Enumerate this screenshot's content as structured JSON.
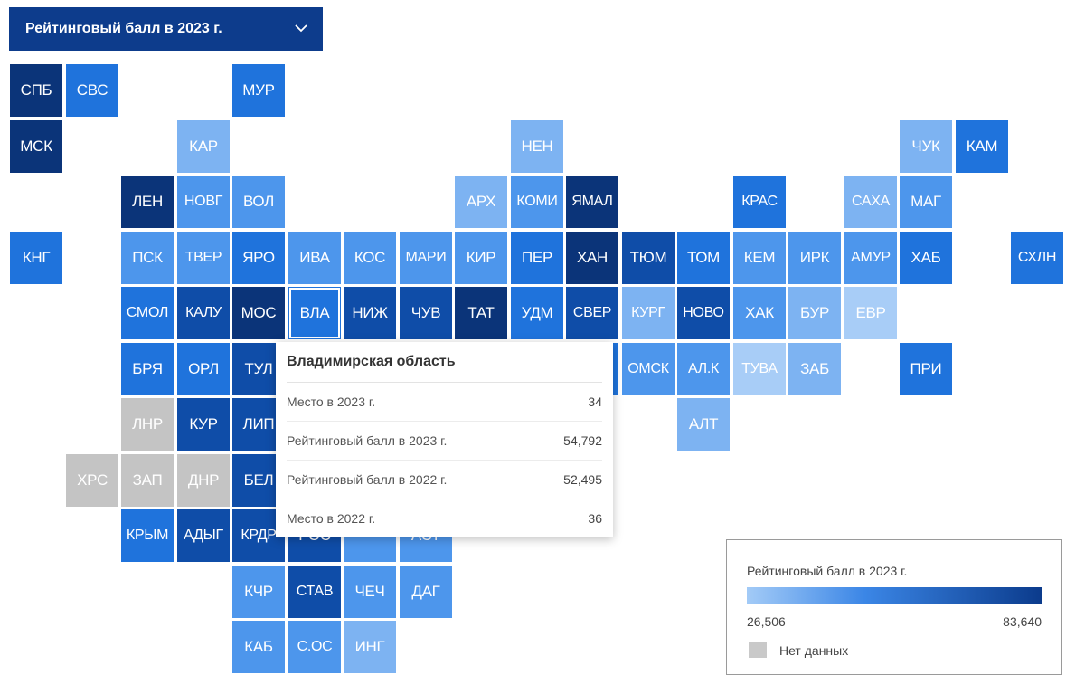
{
  "selector": {
    "label": "Рейтинговый балл в 2023 г.",
    "icon": "chevron-down-icon"
  },
  "colors": {
    "very_dark": "#0b3479",
    "dark": "#0f4da8",
    "medium": "#1f73dc",
    "light": "#4d96ec",
    "lighter": "#7db3f2",
    "lightest": "#a8cdf7",
    "no_data": "#c4c4c4"
  },
  "regions": [
    {
      "label": "СПБ",
      "col": 0,
      "row": 0,
      "shade": "very_dark"
    },
    {
      "label": "СВС",
      "col": 1,
      "row": 0,
      "shade": "medium"
    },
    {
      "label": "МУР",
      "col": 4,
      "row": 0,
      "shade": "medium"
    },
    {
      "label": "МСК",
      "col": 0,
      "row": 1,
      "shade": "very_dark"
    },
    {
      "label": "КАР",
      "col": 3,
      "row": 1,
      "shade": "lighter"
    },
    {
      "label": "НЕН",
      "col": 9,
      "row": 1,
      "shade": "lighter"
    },
    {
      "label": "ЧУК",
      "col": 16,
      "row": 1,
      "shade": "lighter"
    },
    {
      "label": "КАМ",
      "col": 17,
      "row": 1,
      "shade": "medium"
    },
    {
      "label": "ЛЕН",
      "col": 2,
      "row": 2,
      "shade": "very_dark"
    },
    {
      "label": "НОВГ",
      "col": 3,
      "row": 2,
      "shade": "light"
    },
    {
      "label": "ВОЛ",
      "col": 4,
      "row": 2,
      "shade": "light"
    },
    {
      "label": "АРХ",
      "col": 8,
      "row": 2,
      "shade": "lighter"
    },
    {
      "label": "КОМИ",
      "col": 9,
      "row": 2,
      "shade": "light"
    },
    {
      "label": "ЯМАЛ",
      "col": 10,
      "row": 2,
      "shade": "very_dark"
    },
    {
      "label": "КРАС",
      "col": 13,
      "row": 2,
      "shade": "medium"
    },
    {
      "label": "САХА",
      "col": 15,
      "row": 2,
      "shade": "lighter"
    },
    {
      "label": "МАГ",
      "col": 16,
      "row": 2,
      "shade": "light"
    },
    {
      "label": "КНГ",
      "col": 0,
      "row": 3,
      "shade": "medium"
    },
    {
      "label": "ПСК",
      "col": 2,
      "row": 3,
      "shade": "light"
    },
    {
      "label": "ТВЕР",
      "col": 3,
      "row": 3,
      "shade": "light"
    },
    {
      "label": "ЯРО",
      "col": 4,
      "row": 3,
      "shade": "medium"
    },
    {
      "label": "ИВА",
      "col": 5,
      "row": 3,
      "shade": "light"
    },
    {
      "label": "КОС",
      "col": 6,
      "row": 3,
      "shade": "light"
    },
    {
      "label": "МАРИ",
      "col": 7,
      "row": 3,
      "shade": "light"
    },
    {
      "label": "КИР",
      "col": 8,
      "row": 3,
      "shade": "light"
    },
    {
      "label": "ПЕР",
      "col": 9,
      "row": 3,
      "shade": "medium"
    },
    {
      "label": "ХАН",
      "col": 10,
      "row": 3,
      "shade": "very_dark"
    },
    {
      "label": "ТЮМ",
      "col": 11,
      "row": 3,
      "shade": "dark"
    },
    {
      "label": "ТОМ",
      "col": 12,
      "row": 3,
      "shade": "medium"
    },
    {
      "label": "КЕМ",
      "col": 13,
      "row": 3,
      "shade": "light"
    },
    {
      "label": "ИРК",
      "col": 14,
      "row": 3,
      "shade": "light"
    },
    {
      "label": "АМУР",
      "col": 15,
      "row": 3,
      "shade": "light"
    },
    {
      "label": "ХАБ",
      "col": 16,
      "row": 3,
      "shade": "medium"
    },
    {
      "label": "СХЛН",
      "col": 18,
      "row": 3,
      "shade": "medium"
    },
    {
      "label": "СМОЛ",
      "col": 2,
      "row": 4,
      "shade": "medium"
    },
    {
      "label": "КАЛУ",
      "col": 3,
      "row": 4,
      "shade": "dark"
    },
    {
      "label": "МОС",
      "col": 4,
      "row": 4,
      "shade": "very_dark"
    },
    {
      "label": "ВЛА",
      "col": 5,
      "row": 4,
      "shade": "medium",
      "active": true
    },
    {
      "label": "НИЖ",
      "col": 6,
      "row": 4,
      "shade": "dark"
    },
    {
      "label": "ЧУВ",
      "col": 7,
      "row": 4,
      "shade": "dark"
    },
    {
      "label": "ТАТ",
      "col": 8,
      "row": 4,
      "shade": "very_dark"
    },
    {
      "label": "УДМ",
      "col": 9,
      "row": 4,
      "shade": "medium"
    },
    {
      "label": "СВЕР",
      "col": 10,
      "row": 4,
      "shade": "dark"
    },
    {
      "label": "КУРГ",
      "col": 11,
      "row": 4,
      "shade": "lighter"
    },
    {
      "label": "НОВО",
      "col": 12,
      "row": 4,
      "shade": "dark"
    },
    {
      "label": "ХАК",
      "col": 13,
      "row": 4,
      "shade": "light"
    },
    {
      "label": "БУР",
      "col": 14,
      "row": 4,
      "shade": "lighter"
    },
    {
      "label": "ЕВР",
      "col": 15,
      "row": 4,
      "shade": "lightest"
    },
    {
      "label": "БРЯ",
      "col": 2,
      "row": 5,
      "shade": "medium"
    },
    {
      "label": "ОРЛ",
      "col": 3,
      "row": 5,
      "shade": "medium"
    },
    {
      "label": "ТУЛ",
      "col": 4,
      "row": 5,
      "shade": "dark"
    },
    {
      "label": "",
      "col": 10,
      "row": 5,
      "shade": "medium"
    },
    {
      "label": "ОМСК",
      "col": 11,
      "row": 5,
      "shade": "light"
    },
    {
      "label": "АЛ.К",
      "col": 12,
      "row": 5,
      "shade": "light"
    },
    {
      "label": "ТУВА",
      "col": 13,
      "row": 5,
      "shade": "lightest"
    },
    {
      "label": "ЗАБ",
      "col": 14,
      "row": 5,
      "shade": "lighter"
    },
    {
      "label": "ПРИ",
      "col": 16,
      "row": 5,
      "shade": "medium"
    },
    {
      "label": "ЛНР",
      "col": 2,
      "row": 6,
      "shade": "no_data"
    },
    {
      "label": "КУР",
      "col": 3,
      "row": 6,
      "shade": "dark"
    },
    {
      "label": "ЛИП",
      "col": 4,
      "row": 6,
      "shade": "dark"
    },
    {
      "label": "АЛТ",
      "col": 12,
      "row": 6,
      "shade": "lighter"
    },
    {
      "label": "ХРС",
      "col": 1,
      "row": 7,
      "shade": "no_data"
    },
    {
      "label": "ЗАП",
      "col": 2,
      "row": 7,
      "shade": "no_data"
    },
    {
      "label": "ДНР",
      "col": 3,
      "row": 7,
      "shade": "no_data"
    },
    {
      "label": "БЕЛ",
      "col": 4,
      "row": 7,
      "shade": "dark"
    },
    {
      "label": "КРЫМ",
      "col": 2,
      "row": 8,
      "shade": "medium"
    },
    {
      "label": "АДЫГ",
      "col": 3,
      "row": 8,
      "shade": "dark"
    },
    {
      "label": "КРДР",
      "col": 4,
      "row": 8,
      "shade": "dark"
    },
    {
      "label": "РОС",
      "col": 5,
      "row": 8,
      "shade": "dark"
    },
    {
      "label": "",
      "col": 6,
      "row": 8,
      "shade": "light"
    },
    {
      "label": "АСТ",
      "col": 7,
      "row": 8,
      "shade": "light"
    },
    {
      "label": "КЧР",
      "col": 4,
      "row": 9,
      "shade": "light"
    },
    {
      "label": "СТАВ",
      "col": 5,
      "row": 9,
      "shade": "dark"
    },
    {
      "label": "ЧЕЧ",
      "col": 6,
      "row": 9,
      "shade": "light"
    },
    {
      "label": "ДАГ",
      "col": 7,
      "row": 9,
      "shade": "light"
    },
    {
      "label": "КАБ",
      "col": 4,
      "row": 10,
      "shade": "light"
    },
    {
      "label": "С.ОС",
      "col": 5,
      "row": 10,
      "shade": "light"
    },
    {
      "label": "ИНГ",
      "col": 6,
      "row": 10,
      "shade": "lighter"
    }
  ],
  "tooltip": {
    "title": "Владимирская область",
    "rows": [
      {
        "label": "Место в 2023 г.",
        "value": "34"
      },
      {
        "label": "Рейтинговый балл в 2023 г.",
        "value": "54,792"
      },
      {
        "label": "Рейтинговый балл в 2022 г.",
        "value": "52,495"
      },
      {
        "label": "Место в 2022 г.",
        "value": "36"
      }
    ]
  },
  "legend": {
    "title": "Рейтинговый балл в 2023 г.",
    "min": "26,506",
    "max": "83,640",
    "no_data_label": "Нет данных",
    "gradient_from": "#a3cbf7",
    "gradient_to": "#0b3b8c"
  }
}
